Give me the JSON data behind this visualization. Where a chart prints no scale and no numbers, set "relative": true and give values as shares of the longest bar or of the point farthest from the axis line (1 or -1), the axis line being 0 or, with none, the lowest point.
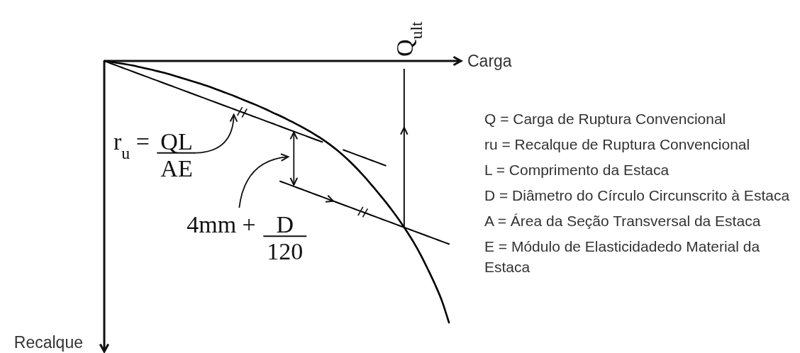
{
  "chart_data": {
    "type": "line",
    "relative": true,
    "xlabel": "Carga",
    "ylabel": "Recalque",
    "categories": [
      null,
      null,
      null,
      null,
      null,
      null,
      null,
      null,
      null,
      null,
      null,
      null,
      null,
      null,
      null,
      null,
      null,
      null,
      null,
      null,
      null,
      null,
      null,
      null,
      null,
      null,
      null,
      null,
      null,
      null,
      null,
      null,
      null,
      null,
      null,
      null,
      null,
      null,
      null,
      null,
      null,
      null,
      null,
      null,
      null,
      null,
      null,
      null,
      null,
      null
    ],
    "series": [
      {
        "color": "#000000",
        "values": [
          0,
          -0.004,
          -0.008,
          -0.012,
          -0.017,
          -0.023,
          -0.029,
          -0.035,
          -0.042,
          -0.049,
          -0.057,
          -0.065,
          -0.073,
          -0.081,
          -0.09,
          -0.099,
          -0.109,
          -0.119,
          -0.129,
          -0.14,
          -0.151,
          -0.162,
          -0.173,
          -0.185,
          -0.198,
          -0.21,
          -0.223,
          -0.237,
          -0.251,
          -0.266,
          -0.282,
          -0.299,
          -0.318,
          -0.339,
          -0.362,
          -0.387,
          -0.414,
          -0.443,
          -0.474,
          -0.506,
          -0.539,
          -0.574,
          -0.611,
          -0.651,
          -0.694,
          -0.742,
          -0.796,
          -0.853,
          -0.917,
          -1
        ]
      },
      {
        "color": "#000000",
        "values": [
          0,
          -0.01,
          -0.02,
          -0.03,
          -0.04,
          -0.05,
          -0.06,
          -0.07,
          -0.08,
          -0.09,
          -0.1,
          -0.11,
          -0.12,
          -0.13,
          -0.14,
          -0.15,
          -0.16,
          -0.17,
          -0.18,
          -0.19,
          -0.2,
          -0.21,
          -0.22,
          -0.23,
          -0.24,
          -0.25,
          -0.26,
          -0.27,
          -0.28,
          -0.29,
          -0.3,
          -0.31,
          null,
          null,
          -0.34,
          -0.35,
          -0.36,
          -0.37,
          -0.38,
          -0.39,
          -0.4,
          null,
          null,
          null,
          null,
          null,
          null,
          null,
          null,
          null
        ]
      },
      {
        "color": "#000000",
        "values": [
          null,
          null,
          null,
          null,
          null,
          null,
          null,
          null,
          null,
          null,
          null,
          null,
          null,
          null,
          null,
          null,
          null,
          null,
          null,
          null,
          null,
          null,
          null,
          null,
          null,
          -0.46,
          -0.47,
          -0.48,
          -0.49,
          -0.5,
          -0.51,
          -0.52,
          -0.53,
          -0.54,
          -0.55,
          -0.56,
          -0.57,
          -0.58,
          -0.59,
          -0.6,
          -0.61,
          -0.62,
          -0.63,
          -0.64,
          -0.65,
          -0.66,
          -0.67,
          -0.68,
          -0.69,
          -0.7
        ]
      }
    ],
    "annotations": [
      "r$_{u}$ = QL",
      "AE",
      "4mm + D",
      "120",
      "Q$_{ult}$",
      "Q = Carga de Ruptura Convencional",
      "ru = Recalque de Ruptura Convencional",
      "L = Comprimento da Estaca",
      "D = Diâmetro do Círculo Circunscrito à Estaca",
      "A = Área da Seção Transversal da Estaca",
      "E = Módulo de Elasticidadedo Material da Estaca"
    ]
  }
}
